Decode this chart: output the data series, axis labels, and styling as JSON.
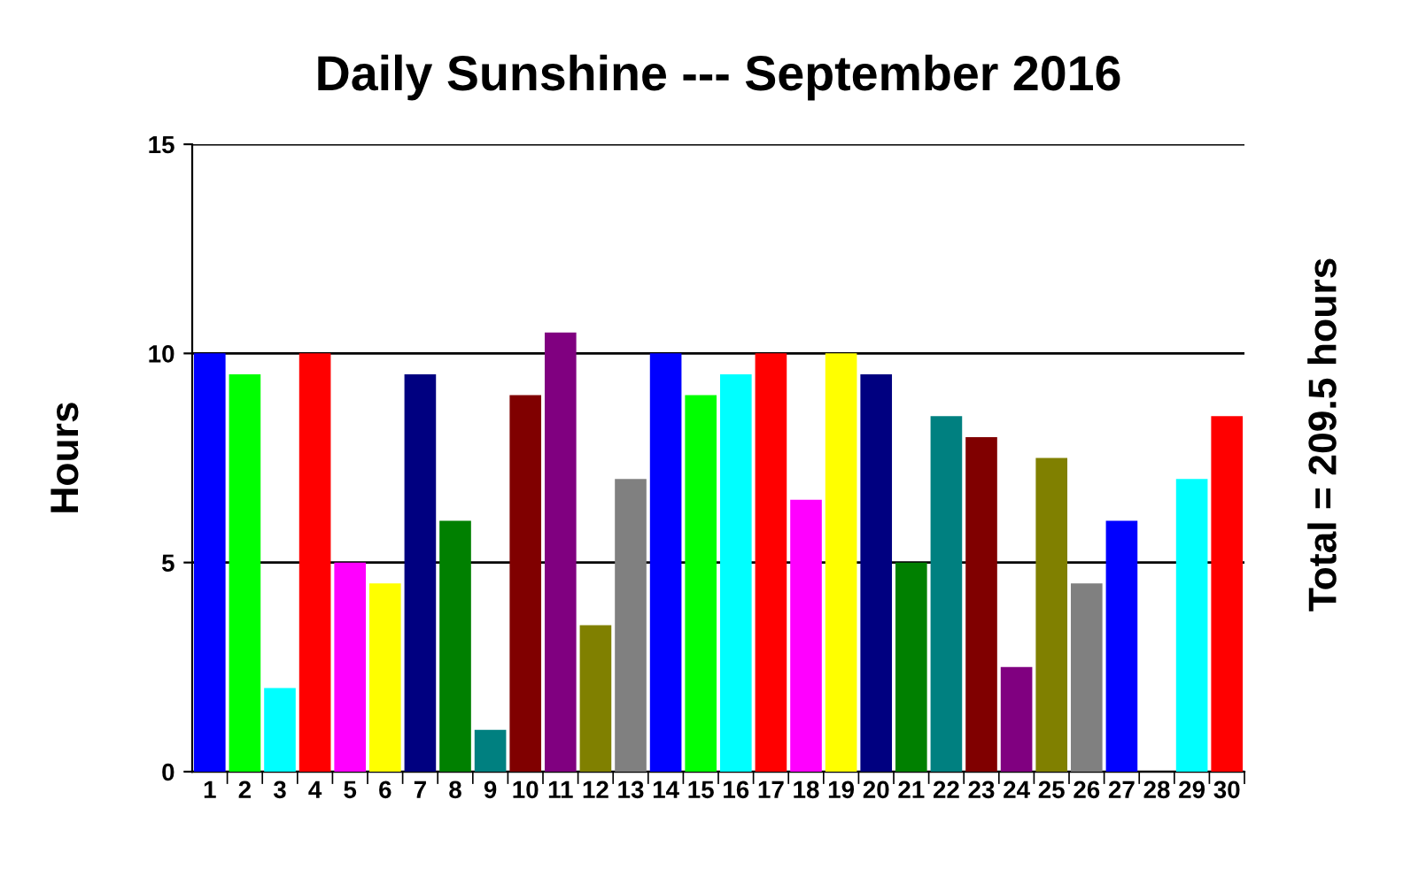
{
  "chart_data": {
    "type": "bar",
    "title": "Daily Sunshine --- September 2016",
    "ylabel": "Hours",
    "categories": [
      "1",
      "2",
      "3",
      "4",
      "5",
      "6",
      "7",
      "8",
      "9",
      "10",
      "11",
      "12",
      "13",
      "14",
      "15",
      "16",
      "17",
      "18",
      "19",
      "20",
      "21",
      "22",
      "23",
      "24",
      "25",
      "26",
      "27",
      "28",
      "29",
      "30"
    ],
    "values": [
      10,
      9.5,
      2,
      10,
      5,
      4.5,
      9.5,
      6,
      1,
      9,
      10.5,
      3.5,
      7,
      10,
      9,
      9.5,
      10,
      6.5,
      10,
      9.5,
      5,
      8.5,
      8,
      2.5,
      7.5,
      4.5,
      6,
      0,
      7,
      8.5
    ],
    "colors": [
      "#0000ff",
      "#00ff00",
      "#00ffff",
      "#ff0000",
      "#ff00ff",
      "#ffff00",
      "#000080",
      "#008000",
      "#008080",
      "#800000",
      "#800080",
      "#808000",
      "#808080",
      "#0000ff",
      "#00ff00",
      "#00ffff",
      "#ff0000",
      "#ff00ff",
      "#ffff00",
      "#000080",
      "#008000",
      "#008080",
      "#800000",
      "#800080",
      "#808000",
      "#808080",
      "#0000ff",
      "#00ff00",
      "#00ffff",
      "#ff0000"
    ],
    "ylim": [
      0,
      15
    ],
    "yticks": [
      0,
      5,
      10,
      15
    ],
    "grid": "y",
    "annotations": [
      "Total = 209.5 hours"
    ]
  }
}
